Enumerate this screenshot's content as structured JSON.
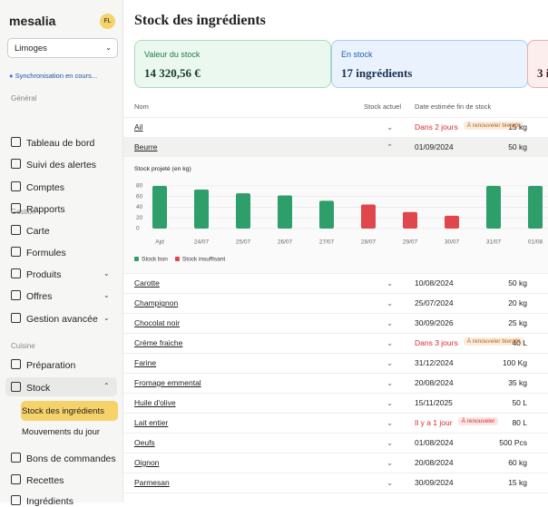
{
  "sidebar": {
    "brand": "mesalia",
    "avatar": "FL",
    "location": "Limoges",
    "sync": "Synchronisation en cours...",
    "sections": [
      {
        "title": "Général",
        "items": [
          "Tableau de bord",
          "Suivi des alertes",
          "Comptes",
          "Rapports"
        ]
      },
      {
        "title": "Gestion",
        "items": [
          "Carte",
          "Formules",
          "Produits",
          "Offres",
          "Gestion avancée"
        ]
      },
      {
        "title": "Cuisine",
        "items": [
          "Préparation",
          "Stock",
          "Stock des ingrédients",
          "Mouvements du jour",
          "Bons de commandes",
          "Recettes",
          "Ingrédients"
        ]
      }
    ]
  },
  "header": {
    "title": "Stock des ingrédients"
  },
  "cards": [
    {
      "label": "Valeur du stock",
      "value": "14 320,56 €"
    },
    {
      "label": "En stock",
      "value": "17 ingrédients"
    },
    {
      "label": "",
      "value": "3 i"
    }
  ],
  "table": {
    "columns": [
      "Nom",
      "Stock actuel",
      "Date estimée fin de stock"
    ],
    "rows": [
      {
        "name": "Ail",
        "stock": "15 kg",
        "date": "Dans 2 jours",
        "badge": {
          "text": "À renouveler bientôt",
          "color": "#c2610c"
        }
      },
      {
        "name": "Beurre",
        "stock": "50 kg",
        "date": "01/09/2024"
      },
      {
        "name": "Carotte",
        "stock": "50 kg",
        "date": "10/08/2024"
      },
      {
        "name": "Champignon",
        "stock": "20 kg",
        "date": "25/07/2024"
      },
      {
        "name": "Chocolat noir",
        "stock": "25 kg",
        "date": "30/09/2026"
      },
      {
        "name": "Crème fraiche",
        "stock": "40 L",
        "date": "Dans 3 jours",
        "badge": {
          "text": "À renouveler bientôt",
          "color": "#c2610c"
        }
      },
      {
        "name": "Farine",
        "stock": "100 Kg",
        "date": "31/12/2024"
      },
      {
        "name": "Fromage emmental",
        "stock": "35 kg",
        "date": "20/08/2024"
      },
      {
        "name": "Huile d'olive",
        "stock": "50 L",
        "date": "15/11/2025"
      },
      {
        "name": "Lait entier",
        "stock": "80 L",
        "date": "Il y a 1 jour",
        "badge": {
          "text": "À renouveler",
          "color": "#d92d2d"
        }
      },
      {
        "name": "Oeufs",
        "stock": "500 Pcs",
        "date": "01/08/2024"
      },
      {
        "name": "Oignon",
        "stock": "60 kg",
        "date": "20/08/2024"
      },
      {
        "name": "Parmesan",
        "stock": "15 kg",
        "date": "30/09/2024"
      }
    ]
  },
  "chart_data": {
    "type": "bar",
    "title": "Stock projeté (en kg)",
    "categories": [
      "Ajd",
      "24/07",
      "25/07",
      "26/07",
      "27/07",
      "28/07",
      "29/07",
      "30/07",
      "31/07",
      "01/08"
    ],
    "series": [
      {
        "name": "Stock bon",
        "color": "#2e9e6b",
        "values": [
          80,
          73,
          66,
          62,
          52,
          null,
          null,
          null,
          80,
          80
        ]
      },
      {
        "name": "Stock insuffisant",
        "color": "#e0474c",
        "values": [
          null,
          null,
          null,
          null,
          null,
          45,
          31,
          24,
          null,
          null
        ]
      }
    ],
    "ylim": [
      0,
      85
    ],
    "yticks": [
      0,
      20,
      40,
      60,
      80
    ],
    "grid": true
  }
}
